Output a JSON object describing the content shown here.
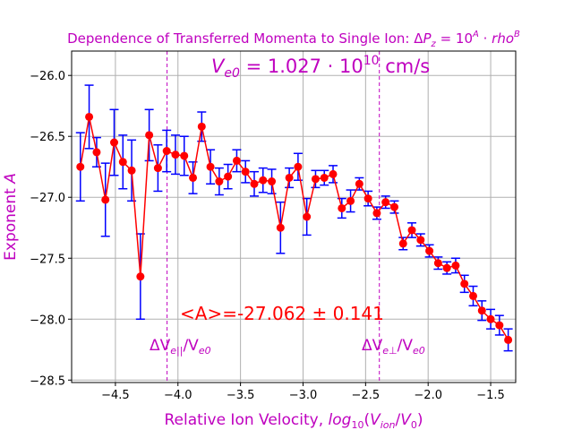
{
  "chart_data": {
    "type": "scatter",
    "title": "Dependence of Transferred Momenta to Single Ion: ΔP_z = 10^A · rho^B",
    "title_parts": {
      "prefix": "Dependence of Transferred Momenta to Single Ion: Δ",
      "P": "P",
      "z": "z",
      "eq": " = 10",
      "A": "A",
      "dot": " · ",
      "rho": "rho",
      "B": "B"
    },
    "xlabel": "Relative Ion Velocity, log10(Vion/V0)",
    "xlabel_parts": {
      "text": "Relative Ion Velocity, ",
      "log": "log",
      "ten": "10",
      "open": "(",
      "V1": "V",
      "ion": "ion",
      "slash": "/",
      "V2": "V",
      "zero": "0",
      "close": ")"
    },
    "ylabel": "Exponent A",
    "ylabel_parts": {
      "text": "Exponent ",
      "A": "A"
    },
    "xlim": [
      -4.85,
      -1.3
    ],
    "ylim": [
      -28.52,
      -25.8
    ],
    "xticks": [
      -4.5,
      -4.0,
      -3.5,
      -3.0,
      -2.5,
      -2.0,
      -1.5
    ],
    "xtick_labels": [
      "−4.5",
      "−4.0",
      "−3.5",
      "−3.0",
      "−2.5",
      "−2.0",
      "−1.5"
    ],
    "yticks": [
      -28.5,
      -28.0,
      -27.5,
      -27.0,
      -26.5,
      -26.0
    ],
    "ytick_labels": [
      "−28.5",
      "−28.0",
      "−27.5",
      "−27.0",
      "−26.5",
      "−26.0"
    ],
    "grid": true,
    "colors": {
      "line": "#ff0000",
      "marker": "#ff0000",
      "errorbar": "#0000ff",
      "annotation": "#bf00bf",
      "mean_text": "#ff0000",
      "grid": "#b0b0b0"
    },
    "annotations": {
      "ve0": {
        "V": "V",
        "sub": "e0",
        "eq": " = 1.027 · 10",
        "exp": "10",
        "unit": " cm/s"
      },
      "mean": "<A>=-27.062 ± 0.141",
      "par": {
        "d": "ΔV",
        "sub": "e||",
        "slash": "/V",
        "sub2": "e0"
      },
      "perp": {
        "d": "ΔV",
        "sub": "e⊥",
        "slash": "/V",
        "sub2": "e0"
      }
    },
    "vlines": [
      -4.087,
      -2.39
    ],
    "series": [
      {
        "x": [
          -4.78,
          -4.71,
          -4.65,
          -4.58,
          -4.51,
          -4.44,
          -4.37,
          -4.3,
          -4.23,
          -4.16,
          -4.09,
          -4.02,
          -3.95,
          -3.88,
          -3.81,
          -3.74,
          -3.67,
          -3.6,
          -3.53,
          -3.46,
          -3.39,
          -3.32,
          -3.25,
          -3.18,
          -3.11,
          -3.04,
          -2.97,
          -2.9,
          -2.83,
          -2.76,
          -2.69,
          -2.62,
          -2.55,
          -2.48,
          -2.41,
          -2.34,
          -2.27,
          -2.2,
          -2.13,
          -2.06,
          -1.99,
          -1.92,
          -1.85,
          -1.78,
          -1.71,
          -1.64,
          -1.57,
          -1.5,
          -1.43,
          -1.36
        ],
        "y": [
          -26.75,
          -26.34,
          -26.63,
          -27.02,
          -26.55,
          -26.71,
          -26.78,
          -27.65,
          -26.49,
          -26.76,
          -26.62,
          -26.65,
          -26.66,
          -26.84,
          -26.42,
          -26.75,
          -26.87,
          -26.83,
          -26.7,
          -26.79,
          -26.89,
          -26.86,
          -26.87,
          -27.25,
          -26.84,
          -26.75,
          -27.16,
          -26.85,
          -26.84,
          -26.81,
          -27.09,
          -27.03,
          -26.89,
          -27.01,
          -27.13,
          -27.04,
          -27.08,
          -27.38,
          -27.27,
          -27.35,
          -27.44,
          -27.54,
          -27.58,
          -27.56,
          -27.71,
          -27.81,
          -27.93,
          -28.0,
          -28.05,
          -28.17
        ],
        "yerr": [
          0.28,
          0.26,
          0.12,
          0.3,
          0.27,
          0.22,
          0.25,
          0.35,
          0.21,
          0.19,
          0.17,
          0.16,
          0.16,
          0.13,
          0.12,
          0.14,
          0.11,
          0.1,
          0.09,
          0.09,
          0.1,
          0.1,
          0.1,
          0.21,
          0.08,
          0.11,
          0.15,
          0.07,
          0.06,
          0.07,
          0.08,
          0.09,
          0.05,
          0.06,
          0.05,
          0.05,
          0.05,
          0.05,
          0.06,
          0.05,
          0.05,
          0.05,
          0.05,
          0.06,
          0.07,
          0.08,
          0.08,
          0.08,
          0.08,
          0.09
        ]
      }
    ]
  }
}
